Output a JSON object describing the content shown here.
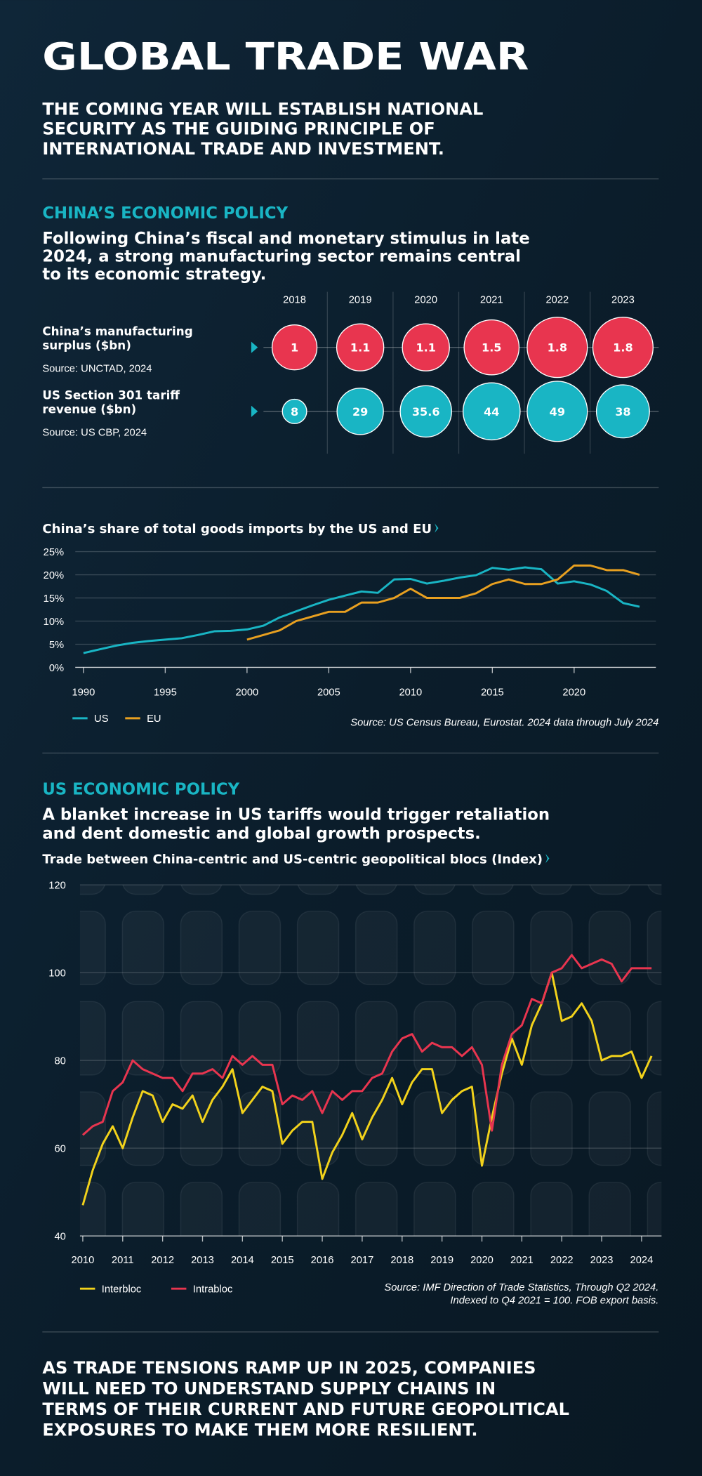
{
  "header": {
    "title": "GLOBAL TRADE WAR",
    "subtitle": [
      "THE COMING YEAR WILL ESTABLISH NATIONAL",
      "SECURITY AS THE GUIDING PRINCIPLE OF",
      "INTERNATIONAL TRADE AND INVESTMENT."
    ]
  },
  "china_section": {
    "heading": "CHINA’S ECONOMIC POLICY",
    "text": [
      "Following China’s fiscal and monetary stimulus in late",
      "2024, a strong manufacturing sector remains central",
      "to its economic strategy."
    ]
  },
  "us_section": {
    "heading": "US ECONOMIC POLICY",
    "text": [
      "A blanket increase in US tariffs would trigger retaliation",
      "and dent domestic and global growth prospects."
    ]
  },
  "footer": {
    "text": [
      "AS TRADE TENSIONS RAMP UP IN 2025, COMPANIES",
      "WILL NEED TO UNDERSTAND SUPPLY CHAINS IN",
      "TERMS OF THEIR CURRENT AND FUTURE GEOPOLITICAL",
      "EXPOSURES TO MAKE THEM MORE RESILIENT."
    ]
  },
  "chart_data": [
    {
      "type": "bubble",
      "categories": [
        "2018",
        "2019",
        "2020",
        "2021",
        "2022",
        "2023"
      ],
      "series": [
        {
          "name": "China’s manufacturing surplus ($bn)",
          "source": "Source: UNCTAD, 2024",
          "color": "#e8354f",
          "values": [
            1,
            1.1,
            1.1,
            1.5,
            1.8,
            1.8
          ]
        },
        {
          "name": "US Section 301 tariff revenue ($bn)",
          "source": "Source: US CBP, 2024",
          "color": "#19b5c4",
          "values": [
            8,
            29,
            35.6,
            44,
            49,
            38
          ]
        }
      ]
    },
    {
      "type": "line",
      "title": "China’s share of total goods imports by the US and EU",
      "x": [
        1990,
        1991,
        1992,
        1993,
        1994,
        1995,
        1996,
        1997,
        1998,
        1999,
        2000,
        2001,
        2002,
        2003,
        2004,
        2005,
        2006,
        2007,
        2008,
        2009,
        2010,
        2011,
        2012,
        2013,
        2014,
        2015,
        2016,
        2017,
        2018,
        2019,
        2020,
        2021,
        2022,
        2023,
        2024
      ],
      "series": [
        {
          "name": "US",
          "color": "#19b5c4",
          "values": [
            3.1,
            3.9,
            4.7,
            5.3,
            5.7,
            6.0,
            6.3,
            7.0,
            7.8,
            7.9,
            8.2,
            9.0,
            10.8,
            12.1,
            13.4,
            14.6,
            15.5,
            16.4,
            16.1,
            19.0,
            19.1,
            18.1,
            18.7,
            19.4,
            19.9,
            21.5,
            21.1,
            21.6,
            21.2,
            18.1,
            18.6,
            17.9,
            16.5,
            13.9,
            13.1
          ]
        },
        {
          "name": "EU",
          "color": "#e8a020",
          "values": [
            null,
            null,
            null,
            null,
            null,
            null,
            null,
            null,
            null,
            null,
            6,
            7,
            8,
            10,
            11,
            12,
            12,
            14,
            14,
            15,
            17,
            15,
            15,
            15,
            16,
            18,
            19,
            18,
            18,
            19,
            22,
            22,
            21,
            21,
            20
          ]
        }
      ],
      "xlim": [
        1989.5,
        2025
      ],
      "xticks": [
        1990,
        1995,
        2000,
        2005,
        2010,
        2015,
        2020
      ],
      "ylim": [
        0,
        25
      ],
      "yticks": [
        {
          "value": 0,
          "label": "0%"
        },
        {
          "value": 5,
          "label": "5%"
        },
        {
          "value": 10,
          "label": "10%"
        },
        {
          "value": 15,
          "label": "15%"
        },
        {
          "value": 20,
          "label": "20%"
        },
        {
          "value": 25,
          "label": "25%"
        }
      ],
      "grid": true,
      "source": "Source: US Census Bureau, Eurostat. 2024 data through July 2024"
    },
    {
      "type": "line",
      "title": "Trade between China-centric and US-centric geopolitical blocs (Index)",
      "x": [
        2010,
        2010.25,
        2010.5,
        2010.75,
        2011,
        2011.25,
        2011.5,
        2011.75,
        2012,
        2012.25,
        2012.5,
        2012.75,
        2013,
        2013.25,
        2013.5,
        2013.75,
        2014,
        2014.25,
        2014.5,
        2014.75,
        2015,
        2015.25,
        2015.5,
        2015.75,
        2016,
        2016.25,
        2016.5,
        2016.75,
        2017,
        2017.25,
        2017.5,
        2017.75,
        2018,
        2018.25,
        2018.5,
        2018.75,
        2019,
        2019.25,
        2019.5,
        2019.75,
        2020,
        2020.25,
        2020.5,
        2020.75,
        2021,
        2021.25,
        2021.5,
        2021.75,
        2022,
        2022.25,
        2022.5,
        2022.75,
        2023,
        2023.25,
        2023.5,
        2023.75,
        2024,
        2024.25
      ],
      "series": [
        {
          "name": "Interbloc",
          "color": "#f2d21b",
          "values": [
            47,
            55,
            61,
            65,
            60,
            67,
            73,
            72,
            66,
            70,
            69,
            72,
            66,
            71,
            74,
            78,
            68,
            71,
            74,
            73,
            61,
            64,
            66,
            66,
            53,
            59,
            63,
            68,
            62,
            67,
            71,
            76,
            70,
            75,
            78,
            78,
            68,
            71,
            73,
            74,
            56,
            67,
            77,
            85,
            79,
            88,
            93,
            100,
            89,
            90,
            93,
            89,
            80,
            81,
            81,
            82,
            76,
            81
          ]
        },
        {
          "name": "Intrabloc",
          "color": "#e8354f",
          "values": [
            63,
            65,
            66,
            73,
            75,
            80,
            78,
            77,
            76,
            76,
            73,
            77,
            77,
            78,
            76,
            81,
            79,
            81,
            79,
            79,
            70,
            72,
            71,
            73,
            68,
            73,
            71,
            73,
            73,
            76,
            77,
            82,
            85,
            86,
            82,
            84,
            83,
            83,
            81,
            83,
            79,
            64,
            79,
            86,
            88,
            94,
            93,
            100,
            101,
            104,
            101,
            102,
            103,
            102,
            98,
            101,
            101,
            101
          ]
        }
      ],
      "xlim": [
        2009.93,
        2024.5
      ],
      "xticks": [
        2010,
        2011,
        2012,
        2013,
        2014,
        2015,
        2016,
        2017,
        2018,
        2019,
        2020,
        2021,
        2022,
        2023,
        2024
      ],
      "ylim": [
        40,
        120
      ],
      "yticks": [
        40,
        60,
        80,
        100,
        120
      ],
      "grid": true,
      "source": [
        "Source: IMF Direction of Trade Statistics, Through Q2 2024.",
        "Indexed to Q4 2021 = 100. FOB export basis."
      ]
    }
  ]
}
